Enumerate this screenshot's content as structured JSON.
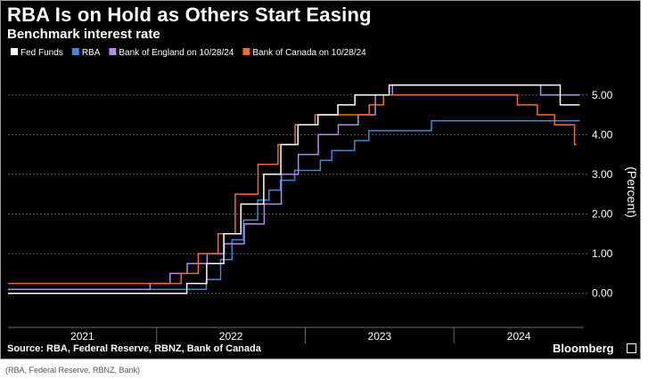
{
  "chart_data": {
    "type": "line",
    "step": true,
    "title": "RBA Is on Hold as Others Start Easing",
    "subtitle": "Benchmark interest rate",
    "ylabel": "(Percent)",
    "ylim": [
      -0.5,
      5.6
    ],
    "yticks": [
      "0.00",
      "1.00",
      "2.00",
      "3.00",
      "4.00",
      "5.00"
    ],
    "xlim": [
      "2021-01-01",
      "2024-11-15"
    ],
    "year_labels": [
      {
        "label": "2021",
        "date": "2021-01-01"
      },
      {
        "label": "2022",
        "date": "2022-01-01"
      },
      {
        "label": "2023",
        "date": "2023-01-01"
      },
      {
        "label": "2024",
        "date": "2024-01-01"
      }
    ],
    "grid": true,
    "legend_position": "top-left",
    "series": [
      {
        "name": "Fed Funds",
        "color": "#ffffff",
        "points": [
          [
            "2021-01-01",
            0.0
          ],
          [
            "2022-03-16",
            0.25
          ],
          [
            "2022-05-04",
            0.75
          ],
          [
            "2022-06-15",
            1.5
          ],
          [
            "2022-07-27",
            2.25
          ],
          [
            "2022-09-21",
            3.0
          ],
          [
            "2022-11-02",
            3.75
          ],
          [
            "2022-12-14",
            4.25
          ],
          [
            "2023-02-01",
            4.5
          ],
          [
            "2023-03-22",
            4.75
          ],
          [
            "2023-05-03",
            5.0
          ],
          [
            "2023-07-26",
            5.25
          ],
          [
            "2024-09-18",
            4.75
          ],
          [
            "2024-11-05",
            4.75
          ]
        ]
      },
      {
        "name": "RBA",
        "color": "#3f86d8",
        "points": [
          [
            "2021-01-01",
            0.1
          ],
          [
            "2022-05-03",
            0.35
          ],
          [
            "2022-06-07",
            0.85
          ],
          [
            "2022-07-05",
            1.35
          ],
          [
            "2022-08-02",
            1.85
          ],
          [
            "2022-09-06",
            2.35
          ],
          [
            "2022-10-04",
            2.6
          ],
          [
            "2022-11-01",
            2.85
          ],
          [
            "2022-12-06",
            3.1
          ],
          [
            "2023-02-07",
            3.35
          ],
          [
            "2023-03-07",
            3.6
          ],
          [
            "2023-05-02",
            3.85
          ],
          [
            "2023-06-06",
            4.1
          ],
          [
            "2023-11-07",
            4.35
          ],
          [
            "2024-11-05",
            4.35
          ]
        ]
      },
      {
        "name": "Bank of England on 10/28/24",
        "color": "#b48ae8",
        "points": [
          [
            "2021-01-01",
            0.1
          ],
          [
            "2021-12-16",
            0.25
          ],
          [
            "2022-02-03",
            0.5
          ],
          [
            "2022-03-17",
            0.75
          ],
          [
            "2022-05-05",
            1.0
          ],
          [
            "2022-06-16",
            1.25
          ],
          [
            "2022-08-04",
            1.75
          ],
          [
            "2022-09-22",
            2.25
          ],
          [
            "2022-11-03",
            3.0
          ],
          [
            "2022-12-15",
            3.5
          ],
          [
            "2023-02-02",
            4.0
          ],
          [
            "2023-03-23",
            4.25
          ],
          [
            "2023-05-11",
            4.5
          ],
          [
            "2023-06-22",
            5.0
          ],
          [
            "2023-08-03",
            5.25
          ],
          [
            "2024-08-01",
            5.0
          ],
          [
            "2024-11-05",
            5.0
          ]
        ]
      },
      {
        "name": "Bank of Canada on 10/28/24",
        "color": "#f06a32",
        "points": [
          [
            "2021-01-01",
            0.25
          ],
          [
            "2022-03-02",
            0.5
          ],
          [
            "2022-04-13",
            1.0
          ],
          [
            "2022-06-01",
            1.5
          ],
          [
            "2022-07-13",
            2.5
          ],
          [
            "2022-09-07",
            3.25
          ],
          [
            "2022-10-26",
            3.75
          ],
          [
            "2022-12-07",
            4.25
          ],
          [
            "2023-01-25",
            4.5
          ],
          [
            "2023-06-07",
            4.75
          ],
          [
            "2023-07-12",
            5.0
          ],
          [
            "2024-06-05",
            4.75
          ],
          [
            "2024-07-24",
            4.5
          ],
          [
            "2024-09-04",
            4.25
          ],
          [
            "2024-10-23",
            3.75
          ],
          [
            "2024-10-28",
            3.75
          ]
        ]
      }
    ]
  },
  "source": "Source: RBA, Federal Reserve, RBNZ, Bank of Canada",
  "brand": "Bloomberg",
  "footnote": "(RBA, Federal Reserve, RBNZ, Bank)"
}
